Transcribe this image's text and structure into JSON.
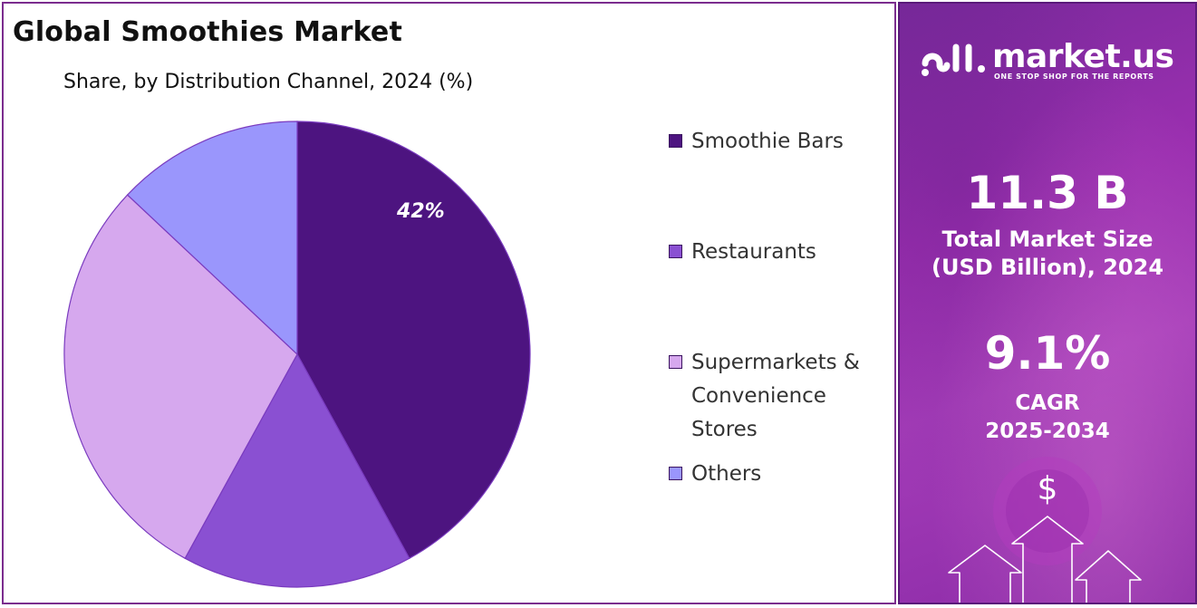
{
  "header": {
    "title": "Global Smoothies Market",
    "subtitle": "Share, by Distribution Channel, 2024 (%)"
  },
  "chart_data": {
    "type": "pie",
    "title": "Global Smoothies Market",
    "subtitle": "Share, by Distribution Channel, 2024 (%)",
    "categories": [
      "Smoothie Bars",
      "Restaurants",
      "Supermarkets & Convenience Stores",
      "Others"
    ],
    "values": [
      42,
      16,
      29,
      13
    ],
    "colors": [
      "#4d1480",
      "#8a50d2",
      "#d6a8ee",
      "#9a96fc"
    ],
    "data_labels": [
      "42%",
      "",
      "",
      ""
    ],
    "legend_position": "right"
  },
  "legend": {
    "items": [
      {
        "label_lines": [
          "Smoothie Bars"
        ],
        "color": "#4d1480"
      },
      {
        "label_lines": [
          "Restaurants"
        ],
        "color": "#8a50d2"
      },
      {
        "label_lines": [
          "Supermarkets &",
          "Convenience",
          "Stores"
        ],
        "color": "#d6a8ee"
      },
      {
        "label_lines": [
          "Others"
        ],
        "color": "#9a96fc"
      }
    ]
  },
  "sidebar": {
    "logo_text": "market.us",
    "logo_tagline": "ONE STOP SHOP FOR THE REPORTS",
    "market_size_value": "11.3 B",
    "market_size_label_line1": "Total Market Size",
    "market_size_label_line2": "(USD Billion), 2024",
    "cagr_value": "9.1%",
    "cagr_label_line1": "CAGR",
    "cagr_label_line2": "2025-2034",
    "dollar_symbol": "$",
    "background_color": "#9b2fb0",
    "icons": [
      "market-us-logo-icon",
      "dollar-coin-icon",
      "growth-arrows-icon"
    ]
  }
}
